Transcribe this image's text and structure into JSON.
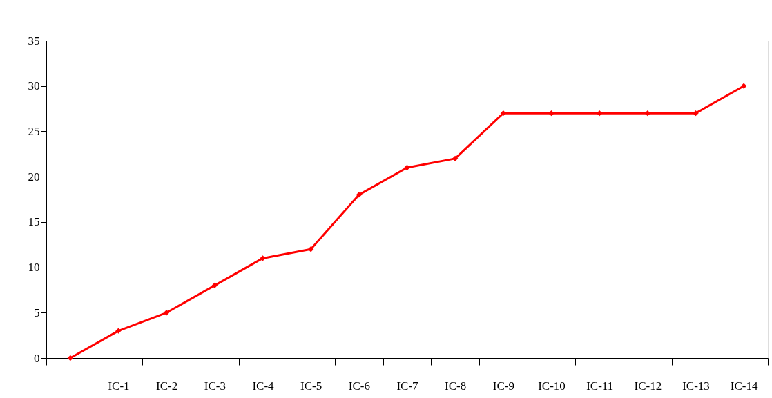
{
  "chart_data": {
    "type": "line",
    "categories": [
      null,
      "IC-1",
      "IC-2",
      "IC-3",
      "IC-4",
      "IC-5",
      "IC-6",
      "IC-7",
      "IC-8",
      "IC-9",
      "IC-10",
      "IC-11",
      "IC-12",
      "IC-13",
      "IC-14"
    ],
    "series": [
      {
        "color": "#ff0000",
        "values": [
          0,
          3,
          5,
          8,
          11,
          12,
          18,
          21,
          22,
          27,
          27,
          27,
          27,
          27,
          30
        ]
      }
    ],
    "ylim": [
      0,
      35
    ],
    "yticks": [
      0,
      5,
      10,
      15,
      20,
      25,
      30,
      35
    ],
    "grid": false,
    "legend": false,
    "marker": "diamond",
    "line_style": "solid"
  }
}
